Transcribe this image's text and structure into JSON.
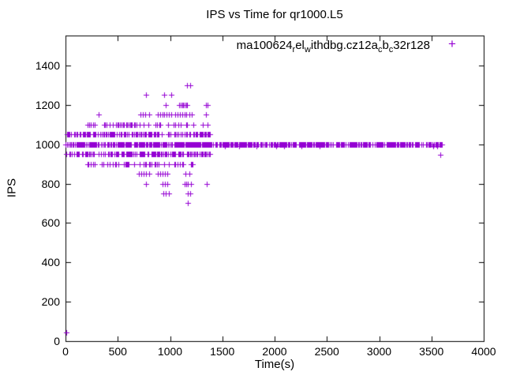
{
  "title": "IPS vs Time for qr1000.L5",
  "legend": {
    "plain_name": "ma100624_rel_withdbg.cz12a_cb_c32r128",
    "segments": [
      [
        "t",
        "ma100624"
      ],
      [
        "s",
        "r"
      ],
      [
        "t",
        "el"
      ],
      [
        "s",
        "w"
      ],
      [
        "t",
        "ithdbg.cz12a"
      ],
      [
        "s",
        "c"
      ],
      [
        "t",
        "b"
      ],
      [
        "s",
        "c"
      ],
      [
        "t",
        "32r128"
      ]
    ],
    "marker_glyph": "+",
    "marker_color": "#9400D3"
  },
  "chart_data": {
    "type": "scatter",
    "title": "IPS vs Time for qr1000.L5",
    "xlabel": "Time(s)",
    "ylabel": "IPS",
    "xlim": [
      0,
      4000
    ],
    "ylim": [
      0,
      1552
    ],
    "xticks": [
      0,
      500,
      1000,
      1500,
      2000,
      2500,
      3000,
      3500,
      4000
    ],
    "yticks": [
      0,
      200,
      400,
      600,
      800,
      1000,
      1200,
      1400
    ],
    "grid": false,
    "tick_mirroring": true,
    "legend_position": "top-right-inside",
    "series": [
      {
        "name": "ma100624_rel_withdbg.cz12a_cb_c32r128",
        "marker": "plus",
        "color": "#9400D3",
        "bands": [
          {
            "ips": 1000,
            "t_range": [
              0,
              3610
            ],
            "count": 700
          },
          {
            "ips": 1050,
            "t_range": [
              5,
              1385
            ],
            "count": 150
          },
          {
            "ips": 950,
            "t_range": [
              5,
              1385
            ],
            "count": 150
          },
          {
            "ips": 1100,
            "t_range": [
              155,
              1365
            ],
            "count": 48
          },
          {
            "ips": 900,
            "t_range": [
              155,
              1365
            ],
            "count": 48
          }
        ],
        "points": [
          [
            8,
            45
          ],
          [
            320,
            1150
          ],
          [
            715,
            1150
          ],
          [
            740,
            1150
          ],
          [
            762,
            1150
          ],
          [
            800,
            1150
          ],
          [
            885,
            1150
          ],
          [
            905,
            1150
          ],
          [
            928,
            1150
          ],
          [
            947,
            1150
          ],
          [
            968,
            1150
          ],
          [
            990,
            1150
          ],
          [
            1012,
            1150
          ],
          [
            1050,
            1150
          ],
          [
            1075,
            1150
          ],
          [
            1098,
            1150
          ],
          [
            1118,
            1150
          ],
          [
            1138,
            1150
          ],
          [
            1158,
            1150
          ],
          [
            1182,
            1150
          ],
          [
            1207,
            1150
          ],
          [
            1345,
            1150
          ],
          [
            955,
            1200
          ],
          [
            1085,
            1200
          ],
          [
            1102,
            1200
          ],
          [
            1116,
            1200
          ],
          [
            1127,
            1200
          ],
          [
            1138,
            1200
          ],
          [
            1152,
            1200
          ],
          [
            1163,
            1200
          ],
          [
            1340,
            1200
          ],
          [
            1357,
            1200
          ],
          [
            770,
            1250
          ],
          [
            945,
            1250
          ],
          [
            1012,
            1250
          ],
          [
            1165,
            1300
          ],
          [
            1190,
            1300
          ],
          [
            700,
            850
          ],
          [
            722,
            850
          ],
          [
            745,
            850
          ],
          [
            768,
            850
          ],
          [
            802,
            850
          ],
          [
            885,
            850
          ],
          [
            908,
            850
          ],
          [
            930,
            850
          ],
          [
            953,
            850
          ],
          [
            975,
            850
          ],
          [
            1145,
            850
          ],
          [
            1185,
            850
          ],
          [
            770,
            800
          ],
          [
            930,
            800
          ],
          [
            948,
            800
          ],
          [
            975,
            800
          ],
          [
            1140,
            800
          ],
          [
            1157,
            800
          ],
          [
            1172,
            800
          ],
          [
            1200,
            800
          ],
          [
            1348,
            800
          ],
          [
            935,
            750
          ],
          [
            962,
            750
          ],
          [
            988,
            750
          ],
          [
            1170,
            750
          ],
          [
            1192,
            750
          ],
          [
            1172,
            700
          ],
          [
            1525,
            990
          ],
          [
            1660,
            990
          ],
          [
            1830,
            990
          ],
          [
            2015,
            990
          ],
          [
            2090,
            990
          ],
          [
            2260,
            990
          ],
          [
            2430,
            990
          ],
          [
            3520,
            990
          ],
          [
            3555,
            990
          ],
          [
            3585,
            945
          ]
        ]
      }
    ]
  },
  "style": {
    "marker_color": "#9400D3",
    "axis_color": "#000000",
    "background": "#ffffff"
  }
}
